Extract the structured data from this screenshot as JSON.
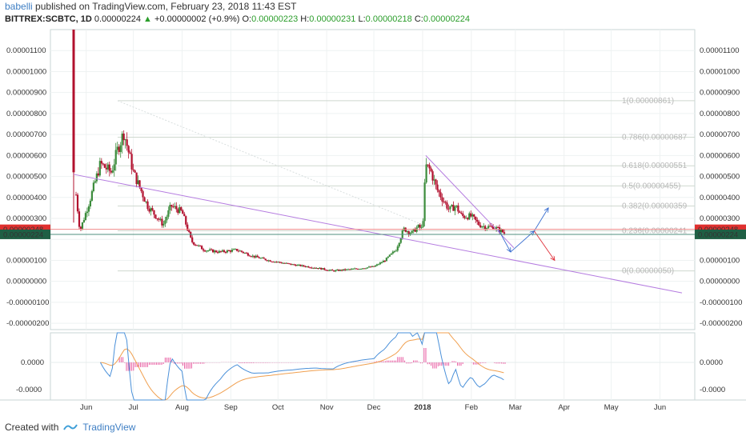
{
  "header": {
    "user": "babelli",
    "published": "published on TradingView.com, February 23, 2018 11:43 EST",
    "symbol": "BITTREX:SCBTC, 1D",
    "last": "0.00000224",
    "change": "+0.00000002 (+0.9%)",
    "o_label": "O:",
    "o": "0.00000223",
    "h_label": "H:",
    "h": "0.00000231",
    "l_label": "L:",
    "l": "0.00000218",
    "c_label": "C:",
    "c": "0.00000224"
  },
  "footer": {
    "created": "Created with",
    "brand": "TradingView"
  },
  "colors": {
    "up": "#3c8c3c",
    "down": "#b2102e",
    "trend": "#b57ce0",
    "fib": "#cfd8cf",
    "fib_text": "#b8b8b8",
    "badge_red": "#e0302f",
    "badge_green": "#1f5f44",
    "macd_hist": "#e85aa0",
    "macd_line": "#4a90d9",
    "signal_line": "#f0a050",
    "arrow_blue": "#3a6fd0",
    "arrow_red": "#e0303a"
  },
  "chart_data": [
    {
      "type": "candlestick",
      "title": "BITTREX:SCBTC, 1D",
      "x_tick_labels": [
        "Jun",
        "Jul",
        "Aug",
        "Sep",
        "Oct",
        "Nov",
        "Dec",
        "2018",
        "Feb",
        "Mar",
        "Apr",
        "May",
        "Jun"
      ],
      "y_tick_labels": [
        "0.00001100",
        "0.00001000",
        "0.00000900",
        "0.00000800",
        "0.00000700",
        "0.00000600",
        "0.00000500",
        "0.00000400",
        "0.00000300",
        "0.00000200",
        "0.00000100",
        "0.00000000",
        "-0.00000100",
        "-0.00000200"
      ],
      "ylim": [
        -2.3e-06,
        1.2e-05
      ],
      "grid": true,
      "price_badges": [
        {
          "label": "0.00000248",
          "value": 2.48e-06,
          "color": "red"
        },
        {
          "label": "0.00000224",
          "value": 2.24e-06,
          "color": "green"
        }
      ],
      "fib_levels": [
        {
          "label": "1(0.00000861)",
          "value": 8.61e-06
        },
        {
          "label": "0.786(0.00000687",
          "value": 6.87e-06
        },
        {
          "label": "0.618(0.00000551",
          "value": 5.51e-06
        },
        {
          "label": "0.5(0.00000455)",
          "value": 4.55e-06
        },
        {
          "label": "0.382(0.00000359",
          "value": 3.59e-06
        },
        {
          "label": "0.236(0.00000241",
          "value": 2.41e-06
        },
        {
          "label": "0(0.00000050)",
          "value": 5e-07
        }
      ],
      "close_series": {
        "x": [
          "2017-05-24",
          "2017-05-28",
          "2017-06-03",
          "2017-06-10",
          "2017-06-17",
          "2017-06-21",
          "2017-06-25",
          "2017-07-01",
          "2017-07-10",
          "2017-07-20",
          "2017-07-25",
          "2017-08-01",
          "2017-08-07",
          "2017-08-15",
          "2017-08-25",
          "2017-09-05",
          "2017-09-15",
          "2017-09-25",
          "2017-10-10",
          "2017-10-25",
          "2017-11-05",
          "2017-11-20",
          "2017-12-01",
          "2017-12-08",
          "2017-12-15",
          "2017-12-20",
          "2017-12-25",
          "2017-12-29",
          "2018-01-01",
          "2018-01-03",
          "2018-01-06",
          "2018-01-10",
          "2018-01-14",
          "2018-01-18",
          "2018-01-22",
          "2018-01-26",
          "2018-02-01",
          "2018-02-06",
          "2018-02-10",
          "2018-02-15",
          "2018-02-20",
          "2018-02-23"
        ],
        "values": [
          5.2e-06,
          2.4e-06,
          3.8e-06,
          5.6e-06,
          5.2e-06,
          6.3e-06,
          7.1e-06,
          5.2e-06,
          3.6e-06,
          2.7e-06,
          3.6e-06,
          3.3e-06,
          1.9e-06,
          1.5e-06,
          1.4e-06,
          1.5e-06,
          1.2e-06,
          1e-06,
          8e-07,
          6.5e-07,
          5e-07,
          6e-07,
          7e-07,
          1e-06,
          1.5e-06,
          2.5e-06,
          2.3e-06,
          2.6e-06,
          2.5e-06,
          5.5e-06,
          5.3e-06,
          4.4e-06,
          3.9e-06,
          3.4e-06,
          3.6e-06,
          3.1e-06,
          3.1e-06,
          2.7e-06,
          2.6e-06,
          2.6e-06,
          2.4e-06,
          2.24e-06
        ]
      },
      "trendlines": [
        {
          "name": "",
          "points": [
            [
              "2017-05-24",
              5.1e-06
            ],
            [
              "2018-06-15",
              -5.5e-07
            ]
          ]
        },
        {
          "name": "",
          "points": [
            [
              "2018-01-03",
              6e-06
            ],
            [
              "2018-02-28",
              1.6e-06
            ]
          ]
        }
      ]
    },
    {
      "type": "line",
      "title": "",
      "y_tick_labels": [
        "0.0000",
        "-0.0000"
      ],
      "series": [
        {
          "values": []
        },
        {
          "values": []
        }
      ]
    }
  ]
}
